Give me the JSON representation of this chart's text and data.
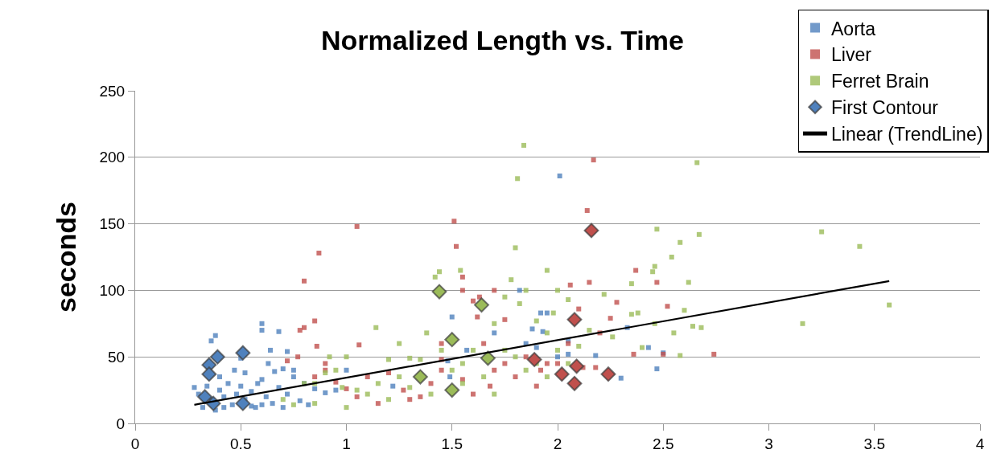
{
  "chart_data": {
    "type": "scatter",
    "title": "Normalized Length vs. Time",
    "ylabel": "seconds",
    "xlim": [
      0,
      4
    ],
    "xticks": [
      0,
      0.5,
      1,
      1.5,
      2,
      2.5,
      3,
      3.5,
      4
    ],
    "ylim": [
      0,
      250
    ],
    "yticks": [
      0,
      50,
      100,
      150,
      200,
      250
    ],
    "grid": "y",
    "legend": "top right",
    "series": [
      {
        "name": "Aorta",
        "color": "#4f81bd",
        "marker": "square",
        "x": [
          0.38,
          0.36,
          0.6,
          0.6,
          0.68,
          0.64,
          0.72,
          0.5,
          0.47,
          0.63,
          0.66,
          0.7,
          0.75,
          0.28,
          0.3,
          0.32,
          0.34,
          0.36,
          0.4,
          0.42,
          0.44,
          0.46,
          0.48,
          0.5,
          0.52,
          0.55,
          0.57,
          0.6,
          0.62,
          0.65,
          0.68,
          0.7,
          0.72,
          0.75,
          0.78,
          0.8,
          0.82,
          0.85,
          0.9,
          0.95,
          0.38,
          0.42,
          0.55,
          0.6,
          0.4,
          0.52,
          0.58,
          1.0,
          1.22,
          1.48,
          1.49,
          1.57,
          1.7,
          1.82,
          1.85,
          1.9,
          1.93,
          1.95,
          2.01,
          2.05,
          2.05,
          2.0,
          2.18,
          2.5,
          2.47,
          2.33,
          2.3,
          2.43,
          1.5,
          1.88,
          1.92
        ],
        "values": [
          66,
          62,
          75,
          70,
          69,
          55,
          54,
          49,
          40,
          45,
          39,
          41,
          40,
          27,
          22,
          12,
          28,
          18,
          25,
          20,
          30,
          14,
          22,
          28,
          18,
          24,
          12,
          33,
          20,
          15,
          27,
          12,
          22,
          35,
          17,
          30,
          14,
          26,
          23,
          25,
          10,
          12,
          13,
          14,
          35,
          38,
          30,
          40,
          28,
          47,
          35,
          55,
          68,
          100,
          60,
          57,
          69,
          83,
          186,
          62,
          52,
          50,
          51,
          53,
          41,
          72,
          34,
          57,
          80,
          71,
          83
        ]
      },
      {
        "name": "Liver",
        "color": "#c0504d",
        "marker": "square",
        "x": [
          1.05,
          0.87,
          0.8,
          0.85,
          0.78,
          0.8,
          0.86,
          1.06,
          0.77,
          0.9,
          0.9,
          0.85,
          0.72,
          0.95,
          1.0,
          1.05,
          1.1,
          1.2,
          1.27,
          1.3,
          1.4,
          1.45,
          1.51,
          1.52,
          1.45,
          1.55,
          1.6,
          1.63,
          1.7,
          1.75,
          1.62,
          1.65,
          1.55,
          1.6,
          1.7,
          1.8,
          1.85,
          1.9,
          1.95,
          2.06,
          2.17,
          2.14,
          2.15,
          2.28,
          2.37,
          2.47,
          2.52,
          2.5,
          2.36,
          2.25,
          2.2,
          2.1,
          2.05,
          2.0,
          2.12,
          2.18,
          2.74,
          1.92,
          1.75,
          1.68,
          1.35,
          1.15,
          1.45,
          1.55
        ],
        "values": [
          148,
          128,
          107,
          77,
          70,
          72,
          58,
          59,
          50,
          45,
          40,
          35,
          47,
          31,
          26,
          20,
          35,
          38,
          25,
          18,
          30,
          40,
          152,
          133,
          60,
          110,
          92,
          95,
          100,
          78,
          80,
          60,
          33,
          22,
          40,
          35,
          50,
          28,
          45,
          104,
          198,
          160,
          106,
          91,
          115,
          106,
          88,
          52,
          52,
          79,
          68,
          86,
          60,
          45,
          42,
          42,
          52,
          40,
          45,
          28,
          20,
          15,
          48,
          100
        ]
      },
      {
        "name": "Ferret Brain",
        "color": "#9bbb59",
        "marker": "square",
        "x": [
          1.84,
          1.81,
          2.66,
          3.25,
          3.43,
          3.16,
          3.57,
          1.8,
          1.78,
          1.85,
          1.82,
          1.75,
          1.44,
          1.42,
          1.54,
          1.95,
          2.0,
          2.47,
          2.58,
          2.54,
          2.45,
          2.46,
          2.35,
          2.62,
          2.67,
          2.6,
          2.38,
          2.46,
          2.64,
          2.68,
          2.4,
          2.35,
          2.58,
          2.55,
          2.05,
          2.22,
          2.26,
          1.9,
          1.95,
          1.98,
          1.14,
          1.38,
          1.3,
          1.25,
          1.2,
          1.0,
          0.95,
          0.9,
          0.85,
          0.8,
          0.75,
          0.7,
          0.85,
          1.0,
          1.05,
          1.1,
          1.15,
          1.2,
          1.3,
          1.4,
          1.45,
          1.5,
          1.55,
          1.6,
          1.65,
          1.7,
          1.75,
          1.8,
          1.85,
          1.9,
          1.95,
          2.0,
          2.05,
          2.1,
          2.15,
          1.7,
          1.55,
          1.25,
          1.35,
          0.98,
          0.92
        ],
        "values": [
          209,
          184,
          196,
          144,
          133,
          75,
          89,
          132,
          108,
          100,
          90,
          95,
          114,
          110,
          115,
          115,
          100,
          146,
          136,
          125,
          114,
          118,
          105,
          106,
          142,
          85,
          83,
          75,
          73,
          72,
          57,
          82,
          51,
          68,
          93,
          97,
          65,
          77,
          68,
          83,
          72,
          68,
          49,
          60,
          48,
          50,
          40,
          38,
          30,
          30,
          14,
          18,
          15,
          12,
          25,
          22,
          30,
          18,
          27,
          22,
          55,
          40,
          45,
          55,
          35,
          75,
          55,
          50,
          40,
          45,
          35,
          55,
          45,
          58,
          70,
          22,
          30,
          35,
          48,
          27,
          50
        ]
      },
      {
        "name": "First Contour",
        "marker": "diamond",
        "colors": [
          "#4f81bd",
          "#4f81bd",
          "#4f81bd",
          "#4f81bd",
          "#4f81bd",
          "#4f81bd",
          "#4f81bd",
          "#9bbb59",
          "#9bbb59",
          "#9bbb59",
          "#9bbb59",
          "#9bbb59",
          "#9bbb59",
          "#c0504d",
          "#c0504d",
          "#c0504d",
          "#c0504d",
          "#c0504d",
          "#c0504d",
          "#c0504d"
        ],
        "x": [
          0.39,
          0.51,
          0.35,
          0.35,
          0.33,
          0.37,
          0.51,
          1.44,
          1.64,
          1.5,
          1.67,
          1.35,
          1.5,
          2.16,
          2.08,
          1.89,
          2.09,
          2.02,
          2.24,
          2.08
        ],
        "values": [
          50,
          53,
          44,
          37,
          20,
          15,
          15,
          99,
          89,
          63,
          49,
          35,
          25,
          145,
          78,
          48,
          43,
          37,
          37,
          30
        ]
      },
      {
        "name": "Linear (TrendLine)",
        "type": "line",
        "color": "#000000",
        "marker": "none",
        "x": [
          0.28,
          3.57
        ],
        "values": [
          14,
          107
        ]
      }
    ]
  }
}
